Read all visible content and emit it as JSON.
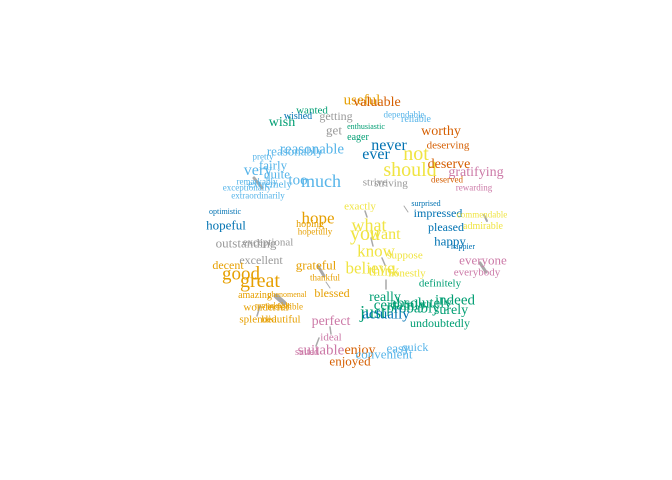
{
  "palette": {
    "orange": "#d55e00",
    "gold": "#e69f00",
    "yellow": "#f0e442",
    "sky": "#56b4e9",
    "blue": "#0072b2",
    "green": "#009e73",
    "pink": "#cc79a7",
    "grey": "#999999"
  },
  "words": [
    {
      "text": "useful",
      "color": "gold"
    },
    {
      "text": "valuable",
      "color": "orange"
    },
    {
      "text": "wanted",
      "color": "green"
    },
    {
      "text": "wished",
      "color": "blue"
    },
    {
      "text": "getting",
      "color": "grey"
    },
    {
      "text": "dependable",
      "color": "sky"
    },
    {
      "text": "reliable",
      "color": "sky"
    },
    {
      "text": "wish",
      "color": "green"
    },
    {
      "text": "get",
      "color": "grey"
    },
    {
      "text": "enthusiastic",
      "color": "green"
    },
    {
      "text": "eager",
      "color": "green"
    },
    {
      "text": "worthy",
      "color": "orange"
    },
    {
      "text": "reasonably",
      "color": "sky"
    },
    {
      "text": "reasonable",
      "color": "sky"
    },
    {
      "text": "never",
      "color": "blue"
    },
    {
      "text": "not",
      "color": "yellow"
    },
    {
      "text": "deserving",
      "color": "orange"
    },
    {
      "text": "ever",
      "color": "blue"
    },
    {
      "text": "pretty",
      "color": "sky"
    },
    {
      "text": "fairly",
      "color": "sky"
    },
    {
      "text": "should",
      "color": "yellow"
    },
    {
      "text": "deserve",
      "color": "orange"
    },
    {
      "text": "gratifying",
      "color": "pink"
    },
    {
      "text": "very",
      "color": "sky"
    },
    {
      "text": "quite",
      "color": "sky"
    },
    {
      "text": "too",
      "color": "sky"
    },
    {
      "text": "much",
      "color": "sky"
    },
    {
      "text": "strive",
      "color": "grey"
    },
    {
      "text": "striving",
      "color": "grey"
    },
    {
      "text": "deserved",
      "color": "orange"
    },
    {
      "text": "rewarding",
      "color": "pink"
    },
    {
      "text": "remarkably",
      "color": "sky"
    },
    {
      "text": "exceptionally",
      "color": "sky"
    },
    {
      "text": "extremely",
      "color": "sky"
    },
    {
      "text": "extraordinarily",
      "color": "sky"
    },
    {
      "text": "exactly",
      "color": "yellow"
    },
    {
      "text": "surprised",
      "color": "blue"
    },
    {
      "text": "optimistic",
      "color": "blue"
    },
    {
      "text": "hope",
      "color": "gold"
    },
    {
      "text": "what",
      "color": "yellow"
    },
    {
      "text": "impressed",
      "color": "blue"
    },
    {
      "text": "commendable",
      "color": "yellow"
    },
    {
      "text": "hopeful",
      "color": "blue"
    },
    {
      "text": "hoping",
      "color": "gold"
    },
    {
      "text": "hopefully",
      "color": "gold"
    },
    {
      "text": "you",
      "color": "yellow"
    },
    {
      "text": "want",
      "color": "yellow"
    },
    {
      "text": "pleased",
      "color": "blue"
    },
    {
      "text": "admirable",
      "color": "yellow"
    },
    {
      "text": "outstanding",
      "color": "grey"
    },
    {
      "text": "exceptional",
      "color": "grey"
    },
    {
      "text": "know",
      "color": "yellow"
    },
    {
      "text": "happy",
      "color": "blue"
    },
    {
      "text": "happier",
      "color": "blue"
    },
    {
      "text": "excellent",
      "color": "grey"
    },
    {
      "text": "grateful",
      "color": "gold"
    },
    {
      "text": "believe",
      "color": "yellow"
    },
    {
      "text": "suppose",
      "color": "yellow"
    },
    {
      "text": "everyone",
      "color": "pink"
    },
    {
      "text": "decent",
      "color": "gold"
    },
    {
      "text": "good",
      "color": "gold"
    },
    {
      "text": "thankful",
      "color": "gold"
    },
    {
      "text": "think",
      "color": "yellow"
    },
    {
      "text": "honestly",
      "color": "yellow"
    },
    {
      "text": "everybody",
      "color": "pink"
    },
    {
      "text": "great",
      "color": "gold"
    },
    {
      "text": "definitely",
      "color": "green"
    },
    {
      "text": "blessed",
      "color": "gold"
    },
    {
      "text": "really",
      "color": "green"
    },
    {
      "text": "indeed",
      "color": "green"
    },
    {
      "text": "amazing",
      "color": "gold"
    },
    {
      "text": "phenomenal",
      "color": "gold"
    },
    {
      "text": "remarkable",
      "color": "gold"
    },
    {
      "text": "incredible",
      "color": "gold"
    },
    {
      "text": "wonderful",
      "color": "gold"
    },
    {
      "text": "certainly",
      "color": "green"
    },
    {
      "text": "absolutely",
      "color": "green"
    },
    {
      "text": "probably",
      "color": "green"
    },
    {
      "text": "just",
      "color": "green"
    },
    {
      "text": "surely",
      "color": "green"
    },
    {
      "text": "actually",
      "color": "blue"
    },
    {
      "text": "splendid",
      "color": "gold"
    },
    {
      "text": "beautiful",
      "color": "gold"
    },
    {
      "text": "perfect",
      "color": "pink"
    },
    {
      "text": "undoubtedly",
      "color": "green"
    },
    {
      "text": "ideal",
      "color": "pink"
    },
    {
      "text": "suitable",
      "color": "pink"
    },
    {
      "text": "suited",
      "color": "pink"
    },
    {
      "text": "enjoy",
      "color": "orange"
    },
    {
      "text": "easy",
      "color": "sky"
    },
    {
      "text": "quick",
      "color": "sky"
    },
    {
      "text": "convenient",
      "color": "sky"
    },
    {
      "text": "enjoyed",
      "color": "orange"
    }
  ]
}
